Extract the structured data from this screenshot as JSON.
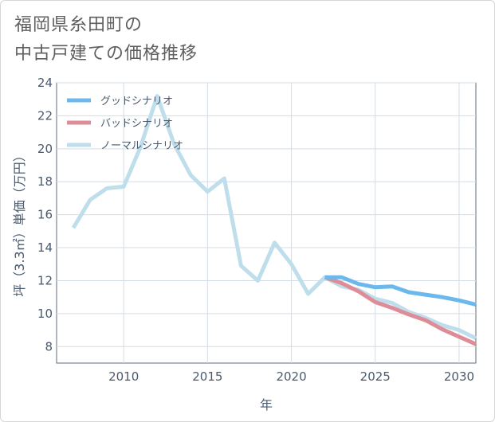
{
  "title": {
    "line1": "福岡県糸田町の",
    "line2": "中古戸建ての価格推移"
  },
  "chart_data": {
    "type": "line",
    "xlabel": "年",
    "ylabel": "坪（3.3㎡）単価（万円）",
    "xlim": [
      2006,
      2031
    ],
    "ylim": [
      7,
      24
    ],
    "x_ticks": [
      2010,
      2015,
      2020,
      2025,
      2030
    ],
    "y_ticks": [
      8,
      10,
      12,
      14,
      16,
      18,
      20,
      22,
      24
    ],
    "grid": true,
    "legend_position": "top-left",
    "series": [
      {
        "name": "グッドシナリオ",
        "color": "#6cb8ec",
        "x": [
          2022,
          2023,
          2024,
          2025,
          2026,
          2027,
          2028,
          2029,
          2030,
          2031
        ],
        "y": [
          12.2,
          12.2,
          11.8,
          11.6,
          11.65,
          11.3,
          11.15,
          11.0,
          10.8,
          10.55
        ]
      },
      {
        "name": "バッドシナリオ",
        "color": "#de8d98",
        "x": [
          2022,
          2023,
          2024,
          2025,
          2026,
          2027,
          2028,
          2029,
          2030,
          2031
        ],
        "y": [
          12.2,
          11.85,
          11.35,
          10.7,
          10.35,
          9.95,
          9.6,
          9.05,
          8.6,
          8.15
        ]
      },
      {
        "name": "ノーマルシナリオ",
        "color": "#bfdeeb",
        "x": [
          2007,
          2008,
          2009,
          2010,
          2011,
          2012,
          2013,
          2014,
          2015,
          2016,
          2017,
          2018,
          2019,
          2020,
          2021,
          2022,
          2023,
          2024,
          2025,
          2026,
          2027,
          2028,
          2029,
          2030,
          2031
        ],
        "y": [
          15.2,
          16.9,
          17.6,
          17.7,
          20.1,
          23.2,
          20.3,
          18.4,
          17.4,
          18.2,
          12.9,
          12.0,
          14.3,
          13.0,
          11.2,
          12.2,
          11.65,
          11.45,
          10.9,
          10.65,
          10.1,
          9.75,
          9.3,
          9.0,
          8.5
        ]
      }
    ]
  }
}
